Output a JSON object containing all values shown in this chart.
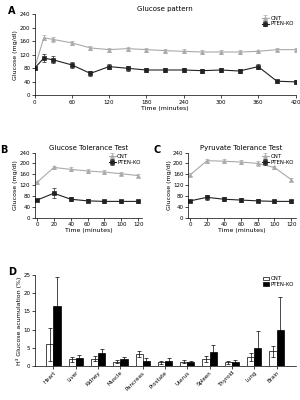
{
  "panel_A": {
    "title": "Glucose pattern",
    "xlabel": "Time (minutes)",
    "ylabel": "Glucose (mg/dl)",
    "xlim": [
      0,
      420
    ],
    "ylim": [
      0,
      240
    ],
    "yticks": [
      0,
      40,
      80,
      120,
      160,
      200,
      240
    ],
    "xticks": [
      0,
      60,
      120,
      180,
      240,
      300,
      360,
      420
    ],
    "cnt_x": [
      0,
      15,
      30,
      60,
      90,
      120,
      150,
      180,
      210,
      240,
      270,
      300,
      330,
      360,
      390,
      420
    ],
    "cnt_y": [
      80,
      170,
      165,
      155,
      140,
      135,
      138,
      135,
      132,
      130,
      128,
      128,
      128,
      130,
      135,
      135
    ],
    "cnt_err": [
      5,
      8,
      7,
      6,
      6,
      6,
      6,
      6,
      6,
      6,
      5,
      5,
      5,
      5,
      5,
      5
    ],
    "ko_x": [
      0,
      15,
      30,
      60,
      90,
      120,
      150,
      180,
      210,
      240,
      270,
      300,
      330,
      360,
      390,
      420
    ],
    "ko_y": [
      80,
      110,
      105,
      90,
      65,
      85,
      80,
      75,
      75,
      75,
      73,
      75,
      72,
      85,
      42,
      40
    ],
    "ko_err": [
      5,
      12,
      10,
      10,
      8,
      8,
      7,
      7,
      7,
      6,
      6,
      6,
      6,
      8,
      5,
      5
    ]
  },
  "panel_B": {
    "title": "Glucose Tolerance Test",
    "xlabel": "Time (minutes)",
    "ylabel": "Glucose (mg/dl)",
    "xlim": [
      -3,
      125
    ],
    "ylim": [
      0,
      240
    ],
    "yticks": [
      0,
      40,
      80,
      120,
      160,
      200,
      240
    ],
    "xticks": [
      0,
      20,
      40,
      60,
      80,
      100,
      120
    ],
    "cnt_x": [
      0,
      20,
      40,
      60,
      80,
      100,
      120
    ],
    "cnt_y": [
      130,
      185,
      178,
      172,
      168,
      162,
      155
    ],
    "cnt_err": [
      6,
      7,
      7,
      6,
      6,
      6,
      6
    ],
    "ko_x": [
      0,
      20,
      40,
      60,
      80,
      100,
      120
    ],
    "ko_y": [
      65,
      90,
      68,
      62,
      60,
      60,
      60
    ],
    "ko_err": [
      5,
      18,
      8,
      6,
      5,
      5,
      5
    ]
  },
  "panel_C": {
    "title": "Pyruvate Tolerance Test",
    "xlabel": "Time (minutes)",
    "ylabel": "Glucose (mg/dl)",
    "xlim": [
      -3,
      125
    ],
    "ylim": [
      0,
      240
    ],
    "yticks": [
      0,
      40,
      80,
      120,
      160,
      200,
      240
    ],
    "xticks": [
      0,
      20,
      40,
      60,
      80,
      100,
      120
    ],
    "cnt_x": [
      0,
      20,
      40,
      60,
      80,
      100,
      120
    ],
    "cnt_y": [
      158,
      210,
      208,
      205,
      200,
      185,
      140
    ],
    "cnt_err": [
      6,
      8,
      8,
      8,
      8,
      7,
      6
    ],
    "ko_x": [
      0,
      20,
      40,
      60,
      80,
      100,
      120
    ],
    "ko_y": [
      62,
      75,
      68,
      65,
      62,
      60,
      60
    ],
    "ko_err": [
      5,
      10,
      8,
      7,
      6,
      5,
      5
    ]
  },
  "panel_D": {
    "ylabel": "H³ Glucose acumulation (%)",
    "ylim": [
      0,
      25
    ],
    "yticks": [
      0,
      5,
      10,
      15,
      20,
      25
    ],
    "categories": [
      "Heart",
      "Liver",
      "Kidney",
      "Muscle",
      "Pancreas",
      "Prostate",
      "Uterus",
      "Spleen",
      "Thyroid",
      "Lung",
      "Brain"
    ],
    "cnt_values": [
      6.0,
      1.8,
      2.0,
      1.2,
      3.2,
      1.0,
      1.2,
      2.0,
      1.0,
      2.5,
      4.0
    ],
    "cnt_err": [
      4.5,
      0.6,
      0.7,
      0.5,
      0.8,
      0.4,
      0.5,
      0.8,
      0.4,
      1.0,
      1.5
    ],
    "ko_values": [
      16.5,
      2.2,
      3.5,
      1.8,
      1.5,
      1.5,
      1.0,
      3.8,
      1.2,
      5.0,
      10.0
    ],
    "ko_err": [
      8.0,
      0.8,
      1.2,
      0.7,
      0.6,
      0.6,
      0.4,
      2.0,
      0.5,
      4.5,
      9.0
    ]
  },
  "cnt_color": "#aaaaaa",
  "ko_color": "#222222",
  "cnt_marker": "^",
  "ko_marker": "s",
  "linewidth": 0.8,
  "markersize": 2.8,
  "fontsize_title": 5.0,
  "fontsize_label": 4.5,
  "fontsize_tick": 4.0,
  "fontsize_legend": 4.0,
  "fontsize_panel_letter": 7
}
